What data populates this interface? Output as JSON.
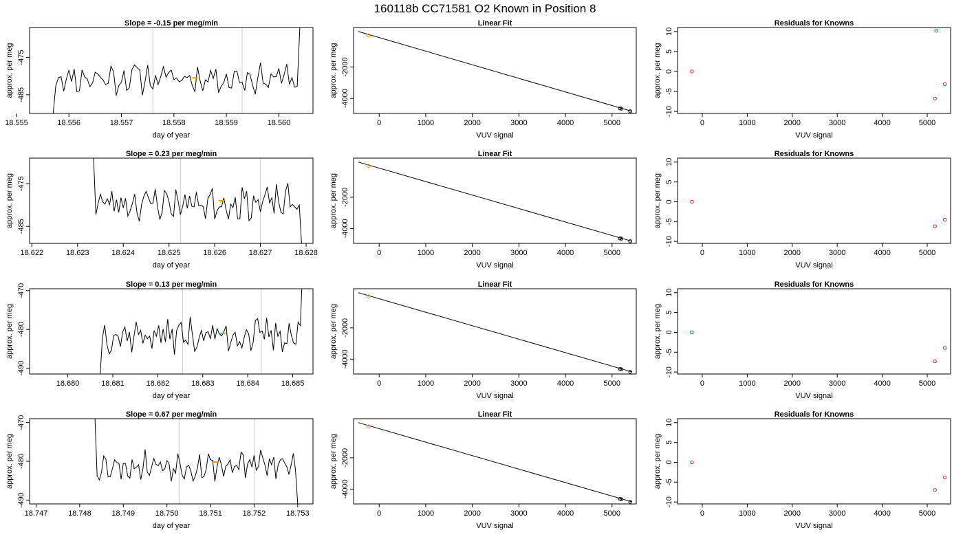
{
  "figure_title": "160118b     CC71581    O2 Known in Position  8",
  "colors": {
    "trace": "#000000",
    "highlight": "#ff8c00",
    "residual": "#e41a1c",
    "guide": "#c8c8c8",
    "axis": "#000000"
  },
  "chart_data": [
    {
      "type": "line",
      "panel": "row1-timeseries",
      "title": "Slope =  -0.15  per meg/min",
      "xlabel": "day of year",
      "ylabel": "approx. per meg",
      "xlim": [
        18.55525,
        18.56065
      ],
      "ylim": [
        -490,
        -467
      ],
      "xticks": [
        18.555,
        18.556,
        18.557,
        18.558,
        18.559,
        18.56
      ],
      "xtick_labels": [
        "18.555",
        "18.556",
        "18.557",
        "18.558",
        "18.559",
        "18.560"
      ],
      "yticks": [
        -485,
        -475
      ],
      "ytick_labels": [
        "-485",
        "-475"
      ],
      "trace": {
        "start_x": 18.5557,
        "end_x": 18.5604,
        "step_x": 5e-05,
        "mean": -480.5,
        "amplitude": 3.2,
        "seed": 11,
        "lead_in_y": -490,
        "lead_out_y": -467
      },
      "vlines": [
        18.5576,
        18.5593
      ],
      "highlight_point": {
        "x": 18.5584,
        "y": -480.5
      }
    },
    {
      "type": "scatter",
      "panel": "row1-fit",
      "title": "Linear Fit",
      "xlabel": "VUV signal",
      "ylabel": "approx. per meg",
      "xlim": [
        -550,
        5520
      ],
      "ylim": [
        -4950,
        500
      ],
      "xticks": [
        0,
        1000,
        2000,
        3000,
        4000,
        5000
      ],
      "xtick_labels": [
        "0",
        "1000",
        "2000",
        "3000",
        "4000",
        "5000"
      ],
      "yticks": [
        -4000,
        -2000
      ],
      "ytick_labels": [
        "-4000",
        "-2000"
      ],
      "fit_line": {
        "x": [
          -450,
          5420
        ],
        "y": [
          250,
          -4810
        ]
      },
      "points": [
        {
          "x": -230,
          "y": 0,
          "color": "highlight"
        },
        {
          "x": 5170,
          "y": -4630,
          "color": "black"
        },
        {
          "x": 5200,
          "y": -4648,
          "color": "black"
        },
        {
          "x": 5390,
          "y": -4810,
          "color": "black"
        }
      ]
    },
    {
      "type": "scatter",
      "panel": "row1-residuals",
      "title": "Residuals for Knowns",
      "xlabel": "VUV signal",
      "ylabel": "approx. per meg",
      "xlim": [
        -550,
        5520
      ],
      "ylim": [
        -10.5,
        11
      ],
      "xticks": [
        0,
        1000,
        2000,
        3000,
        4000,
        5000
      ],
      "xtick_labels": [
        "0",
        "1000",
        "2000",
        "3000",
        "4000",
        "5000"
      ],
      "yticks": [
        -10,
        -5,
        0,
        5,
        10
      ],
      "ytick_labels": [
        "-10",
        "-5",
        "0",
        "5",
        "10"
      ],
      "points": [
        {
          "x": -230,
          "y": 0
        },
        {
          "x": 5170,
          "y": -6.8
        },
        {
          "x": 5200,
          "y": 10.2
        },
        {
          "x": 5390,
          "y": -3.2
        }
      ]
    },
    {
      "type": "line",
      "panel": "row2-timeseries",
      "title": "Slope =  0.23  per meg/min",
      "xlabel": "day of year",
      "ylabel": "approx. per meg",
      "xlim": [
        18.62195,
        18.62815
      ],
      "ylim": [
        -489,
        -469
      ],
      "xticks": [
        18.622,
        18.623,
        18.624,
        18.625,
        18.626,
        18.627,
        18.628
      ],
      "xtick_labels": [
        "18.622",
        "18.623",
        "18.624",
        "18.625",
        "18.626",
        "18.627",
        "18.628"
      ],
      "yticks": [
        -485,
        -475
      ],
      "ytick_labels": [
        "-485",
        "-475"
      ],
      "trace": {
        "start_x": 18.62335,
        "end_x": 18.6279,
        "step_x": 5e-05,
        "mean": -479.5,
        "amplitude": 3.0,
        "seed": 23,
        "lead_in_y": -469,
        "lead_out_y": -489
      },
      "vlines": [
        18.62525,
        18.627
      ],
      "highlight_point": {
        "x": 18.62615,
        "y": -479
      }
    },
    {
      "type": "scatter",
      "panel": "row2-fit",
      "title": "Linear Fit",
      "xlabel": "VUV signal",
      "ylabel": "approx. per meg",
      "xlim": [
        -550,
        5520
      ],
      "ylim": [
        -4950,
        500
      ],
      "xticks": [
        0,
        1000,
        2000,
        3000,
        4000,
        5000
      ],
      "xtick_labels": [
        "0",
        "1000",
        "2000",
        "3000",
        "4000",
        "5000"
      ],
      "yticks": [
        -4000,
        -2000
      ],
      "ytick_labels": [
        "-4000",
        "-2000"
      ],
      "fit_line": {
        "x": [
          -450,
          5420
        ],
        "y": [
          250,
          -4810
        ]
      },
      "points": [
        {
          "x": -230,
          "y": 0,
          "color": "highlight"
        },
        {
          "x": 5170,
          "y": -4630,
          "color": "black"
        },
        {
          "x": 5200,
          "y": -4648,
          "color": "black"
        },
        {
          "x": 5390,
          "y": -4810,
          "color": "black"
        }
      ]
    },
    {
      "type": "scatter",
      "panel": "row2-residuals",
      "title": "Residuals for Knowns",
      "xlabel": "VUV signal",
      "ylabel": "approx. per meg",
      "xlim": [
        -550,
        5520
      ],
      "ylim": [
        -10.5,
        11
      ],
      "xticks": [
        0,
        1000,
        2000,
        3000,
        4000,
        5000
      ],
      "xtick_labels": [
        "0",
        "1000",
        "2000",
        "3000",
        "4000",
        "5000"
      ],
      "yticks": [
        -10,
        -5,
        0,
        5,
        10
      ],
      "ytick_labels": [
        "-10",
        "-5",
        "0",
        "5",
        "10"
      ],
      "points": [
        {
          "x": -230,
          "y": 0
        },
        {
          "x": 5170,
          "y": -6.2
        },
        {
          "x": 5390,
          "y": -4.5
        }
      ]
    },
    {
      "type": "line",
      "panel": "row3-timeseries",
      "title": "Slope =  0.13  per meg/min",
      "xlabel": "day of year",
      "ylabel": "approx. per meg",
      "xlim": [
        18.67915,
        18.68545
      ],
      "ylim": [
        -491.5,
        -469.5
      ],
      "xticks": [
        18.68,
        18.681,
        18.682,
        18.683,
        18.684,
        18.685
      ],
      "xtick_labels": [
        "18.680",
        "18.681",
        "18.682",
        "18.683",
        "18.684",
        "18.685"
      ],
      "yticks": [
        -490,
        -480,
        -470
      ],
      "ytick_labels": [
        "-490",
        "-480",
        "-470"
      ],
      "trace": {
        "start_x": 18.68072,
        "end_x": 18.6852,
        "step_x": 5e-05,
        "mean": -481.5,
        "amplitude": 3.3,
        "seed": 37,
        "lead_in_y": -491.5,
        "lead_out_y": -469.5
      },
      "vlines": [
        18.68255,
        18.6843
      ],
      "highlight_point": {
        "x": 18.68345,
        "y": -481
      }
    },
    {
      "type": "scatter",
      "panel": "row3-fit",
      "title": "Linear Fit",
      "xlabel": "VUV signal",
      "ylabel": "approx. per meg",
      "xlim": [
        -550,
        5520
      ],
      "ylim": [
        -4950,
        500
      ],
      "xticks": [
        0,
        1000,
        2000,
        3000,
        4000,
        5000
      ],
      "xtick_labels": [
        "0",
        "1000",
        "2000",
        "3000",
        "4000",
        "5000"
      ],
      "yticks": [
        -4000,
        -2000
      ],
      "ytick_labels": [
        "-4000",
        "-2000"
      ],
      "fit_line": {
        "x": [
          -450,
          5420
        ],
        "y": [
          250,
          -4810
        ]
      },
      "points": [
        {
          "x": -230,
          "y": 0,
          "color": "highlight"
        },
        {
          "x": 5170,
          "y": -4630,
          "color": "black"
        },
        {
          "x": 5200,
          "y": -4648,
          "color": "black"
        },
        {
          "x": 5390,
          "y": -4810,
          "color": "black"
        }
      ]
    },
    {
      "type": "scatter",
      "panel": "row3-residuals",
      "title": "Residuals for Knowns",
      "xlabel": "VUV signal",
      "ylabel": "approx. per meg",
      "xlim": [
        -550,
        5520
      ],
      "ylim": [
        -10.5,
        11
      ],
      "xticks": [
        0,
        1000,
        2000,
        3000,
        4000,
        5000
      ],
      "xtick_labels": [
        "0",
        "1000",
        "2000",
        "3000",
        "4000",
        "5000"
      ],
      "yticks": [
        -10,
        -5,
        0,
        5,
        10
      ],
      "ytick_labels": [
        "-10",
        "-5",
        "0",
        "5",
        "10"
      ],
      "points": [
        {
          "x": -230,
          "y": 0
        },
        {
          "x": 5170,
          "y": -7.3
        },
        {
          "x": 5390,
          "y": -3.9
        }
      ]
    },
    {
      "type": "line",
      "panel": "row4-timeseries",
      "title": "Slope =  0.67  per meg/min",
      "xlabel": "day of year",
      "ylabel": "approx. per meg",
      "xlim": [
        18.74685,
        18.75335
      ],
      "ylim": [
        -491,
        -469
      ],
      "xticks": [
        18.747,
        18.748,
        18.749,
        18.75,
        18.751,
        18.752,
        18.753
      ],
      "xtick_labels": [
        "18.747",
        "18.748",
        "18.749",
        "18.750",
        "18.751",
        "18.752",
        "18.753"
      ],
      "yticks": [
        -490,
        -480,
        -470
      ],
      "ytick_labels": [
        "-490",
        "-480",
        "-470"
      ],
      "trace": {
        "start_x": 18.74835,
        "end_x": 18.753,
        "step_x": 5e-05,
        "mean": -481.0,
        "amplitude": 3.0,
        "seed": 53,
        "lead_in_y": -469,
        "lead_out_y": -491
      },
      "vlines": [
        18.75028,
        18.752
      ],
      "highlight_point": {
        "x": 18.75112,
        "y": -480.2
      }
    },
    {
      "type": "scatter",
      "panel": "row4-fit",
      "title": "Linear Fit",
      "xlabel": "VUV signal",
      "ylabel": "approx. per meg",
      "xlim": [
        -550,
        5520
      ],
      "ylim": [
        -4950,
        500
      ],
      "xticks": [
        0,
        1000,
        2000,
        3000,
        4000,
        5000
      ],
      "xtick_labels": [
        "0",
        "1000",
        "2000",
        "3000",
        "4000",
        "5000"
      ],
      "yticks": [
        -4000,
        -2000
      ],
      "ytick_labels": [
        "-4000",
        "-2000"
      ],
      "fit_line": {
        "x": [
          -450,
          5420
        ],
        "y": [
          250,
          -4810
        ]
      },
      "points": [
        {
          "x": -230,
          "y": 0,
          "color": "highlight"
        },
        {
          "x": 5170,
          "y": -4630,
          "color": "black"
        },
        {
          "x": 5200,
          "y": -4648,
          "color": "black"
        },
        {
          "x": 5390,
          "y": -4810,
          "color": "black"
        }
      ]
    },
    {
      "type": "scatter",
      "panel": "row4-residuals",
      "title": "Residuals for Knowns",
      "xlabel": "VUV signal",
      "ylabel": "approx. per meg",
      "xlim": [
        -550,
        5520
      ],
      "ylim": [
        -10.5,
        11
      ],
      "xticks": [
        0,
        1000,
        2000,
        3000,
        4000,
        5000
      ],
      "xtick_labels": [
        "0",
        "1000",
        "2000",
        "3000",
        "4000",
        "5000"
      ],
      "yticks": [
        -10,
        -5,
        0,
        5,
        10
      ],
      "ytick_labels": [
        "-10",
        "-5",
        "0",
        "5",
        "10"
      ],
      "points": [
        {
          "x": -230,
          "y": 0
        },
        {
          "x": 5170,
          "y": -7.0
        },
        {
          "x": 5390,
          "y": -3.8
        }
      ]
    }
  ]
}
